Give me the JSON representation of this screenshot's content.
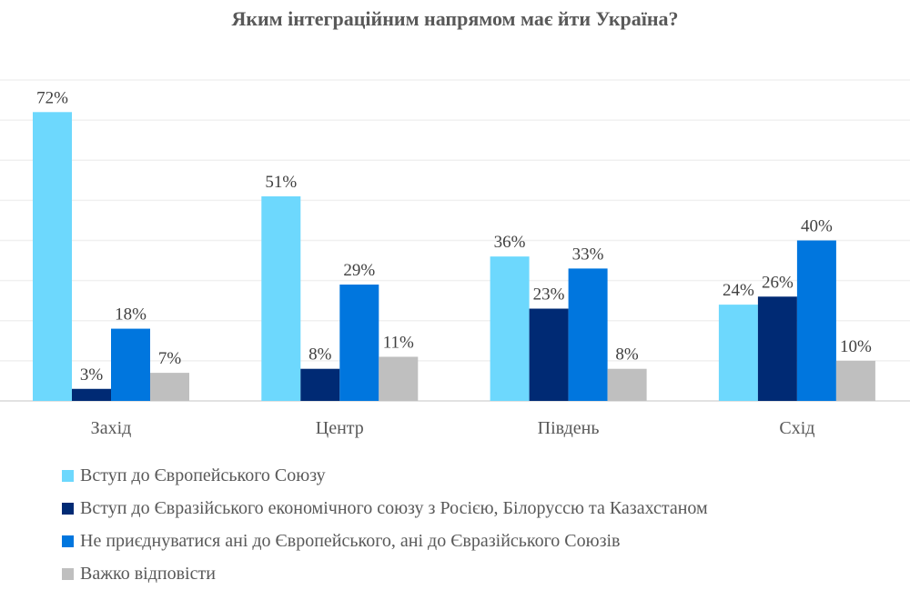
{
  "chart_data": {
    "type": "bar",
    "title": "Яким інтеграційним напрямом має йти Україна?",
    "categories": [
      "Захід",
      "Центр",
      "Південь",
      "Схід"
    ],
    "series": [
      {
        "name": "Вступ до Європейського Союзу",
        "color": "#6dd8fd",
        "values": [
          72,
          51,
          36,
          24
        ]
      },
      {
        "name": "Вступ до Євразійського економічного союзу  з Росією, Білоруссю та Казахстаном",
        "color": "#002a74",
        "values": [
          3,
          8,
          23,
          26
        ]
      },
      {
        "name": "Не приєднуватися ані до Європейського, ані до Євразійського Союзів",
        "color": "#0076de",
        "values": [
          18,
          29,
          33,
          40
        ]
      },
      {
        "name": "Важко відповісти",
        "color": "#bfbfbf",
        "values": [
          7,
          11,
          8,
          10
        ]
      }
    ],
    "value_suffix": "%",
    "ylim": [
      0,
      80
    ],
    "grid": true,
    "legend_position": "bottom"
  }
}
